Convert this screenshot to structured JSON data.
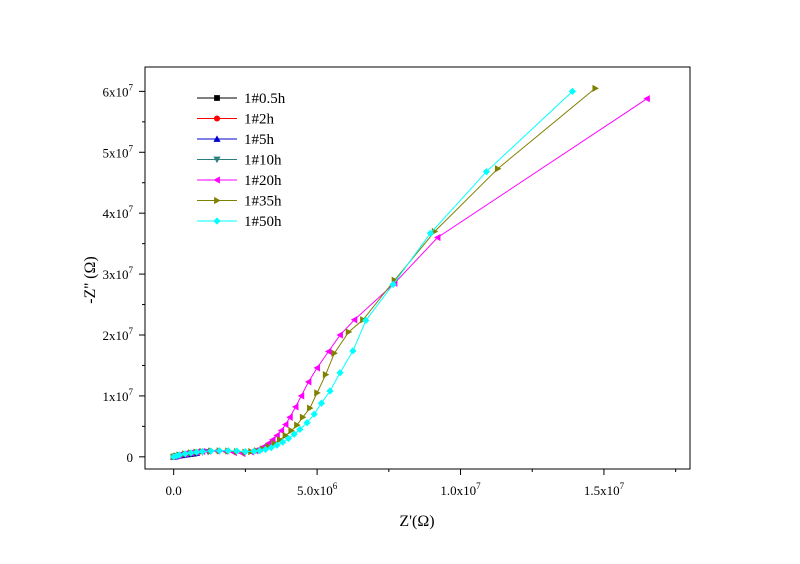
{
  "chart_data": {
    "type": "line",
    "title": "",
    "xlabel": "Z'(Ω)",
    "ylabel": "-Z'' (Ω)",
    "xlim": [
      -1000000,
      18000000
    ],
    "ylim": [
      -2000000,
      64000000
    ],
    "x_ticks": [
      {
        "value": 0,
        "base": "0.0",
        "exp": ""
      },
      {
        "value": 5000000,
        "base": "5.0x10",
        "exp": "6"
      },
      {
        "value": 10000000,
        "base": "1.0x10",
        "exp": "7"
      },
      {
        "value": 15000000,
        "base": "1.5x10",
        "exp": "7"
      }
    ],
    "y_ticks": [
      {
        "value": 0,
        "base": "0",
        "exp": ""
      },
      {
        "value": 10000000,
        "base": "1x10",
        "exp": "7"
      },
      {
        "value": 20000000,
        "base": "2x10",
        "exp": "7"
      },
      {
        "value": 30000000,
        "base": "3x10",
        "exp": "7"
      },
      {
        "value": 40000000,
        "base": "4x10",
        "exp": "7"
      },
      {
        "value": 50000000,
        "base": "5x10",
        "exp": "7"
      },
      {
        "value": 60000000,
        "base": "6x10",
        "exp": "7"
      }
    ],
    "grid": false,
    "legend_position": "top-left",
    "series": [
      {
        "name": "1#0.5h",
        "color": "#000000",
        "marker": "square",
        "x": [
          0,
          50000,
          100000,
          200000,
          300000,
          400000,
          500000,
          600000,
          700000
        ],
        "y": [
          0,
          50000,
          100000,
          180000,
          260000,
          340000,
          400000,
          460000,
          520000
        ]
      },
      {
        "name": "1#2h",
        "color": "#ff0000",
        "marker": "circle",
        "x": [
          0,
          50000,
          100000,
          200000,
          300000,
          400000,
          500000,
          600000,
          700000
        ],
        "y": [
          0,
          60000,
          120000,
          200000,
          280000,
          360000,
          420000,
          480000,
          540000
        ]
      },
      {
        "name": "1#5h",
        "color": "#0000cc",
        "marker": "triangle-up",
        "x": [
          0,
          50000,
          100000,
          200000,
          300000,
          400000,
          500000,
          600000,
          700000,
          800000
        ],
        "y": [
          0,
          60000,
          130000,
          220000,
          300000,
          380000,
          450000,
          510000,
          570000,
          620000
        ]
      },
      {
        "name": "1#10h",
        "color": "#2e7d7d",
        "marker": "triangle-down",
        "x": [
          0,
          100000,
          200000,
          400000,
          600000,
          800000,
          1000000,
          1200000
        ],
        "y": [
          0,
          150000,
          280000,
          420000,
          560000,
          680000,
          760000,
          820000
        ]
      },
      {
        "name": "1#20h",
        "color": "#ff00ff",
        "marker": "triangle-left",
        "x": [
          0,
          100000,
          200000,
          400000,
          600000,
          800000,
          1000000,
          1200000,
          1500000,
          1800000,
          2100000,
          2400000,
          2700000,
          2850000,
          3000000,
          3150000,
          3300000,
          3450000,
          3600000,
          3750000,
          3900000,
          4050000,
          4250000,
          4450000,
          4700000,
          5000000,
          5400000,
          5800000,
          6300000,
          7700000,
          9200000,
          16500000
        ],
        "y": [
          0,
          150000,
          300000,
          500000,
          650000,
          780000,
          880000,
          940000,
          960000,
          900000,
          700000,
          550000,
          800000,
          1000000,
          1300000,
          1700000,
          2200000,
          2800000,
          3500000,
          4300000,
          5300000,
          6500000,
          8200000,
          10000000,
          12300000,
          14600000,
          17300000,
          20000000,
          22500000,
          28500000,
          36000000,
          58800000
        ]
      },
      {
        "name": "1#35h",
        "color": "#808000",
        "marker": "triangle-right",
        "x": [
          0,
          100000,
          200000,
          400000,
          600000,
          800000,
          1000000,
          1300000,
          1600000,
          1900000,
          2200000,
          2500000,
          2700000,
          2900000,
          3100000,
          3300000,
          3500000,
          3700000,
          3900000,
          4100000,
          4300000,
          4500000,
          4750000,
          5000000,
          5300000,
          5600000,
          6100000,
          6600000,
          7700000,
          9100000,
          11300000,
          14700000
        ],
        "y": [
          0,
          150000,
          300000,
          500000,
          650000,
          780000,
          880000,
          950000,
          980000,
          960000,
          850000,
          750000,
          850000,
          1000000,
          1300000,
          1700000,
          2200000,
          2800000,
          3500000,
          4300000,
          5200000,
          6500000,
          8000000,
          10500000,
          13500000,
          17000000,
          20500000,
          22500000,
          29000000,
          37000000,
          47300000,
          60500000
        ]
      },
      {
        "name": "1#50h",
        "color": "#00ffff",
        "marker": "diamond",
        "x": [
          0,
          100000,
          200000,
          400000,
          600000,
          800000,
          1000000,
          1300000,
          1600000,
          1900000,
          2200000,
          2500000,
          2800000,
          3000000,
          3200000,
          3400000,
          3600000,
          3800000,
          4000000,
          4200000,
          4400000,
          4650000,
          4900000,
          5150000,
          5450000,
          5800000,
          6250000,
          6700000,
          7650000,
          8950000,
          10900000,
          13900000
        ],
        "y": [
          0,
          150000,
          300000,
          500000,
          650000,
          780000,
          880000,
          960000,
          1000000,
          1000000,
          950000,
          850000,
          900000,
          1000000,
          1200000,
          1500000,
          1900000,
          2400000,
          3000000,
          3700000,
          4500000,
          5600000,
          7000000,
          8800000,
          10800000,
          13800000,
          17400000,
          22400000,
          28300000,
          36700000,
          46800000,
          60000000
        ]
      }
    ]
  }
}
